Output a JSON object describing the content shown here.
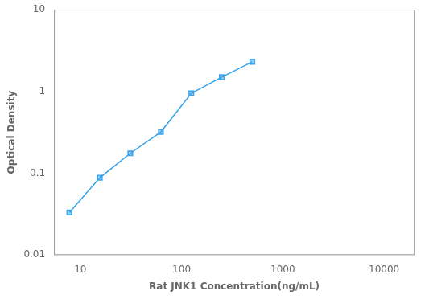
{
  "chart_data": {
    "type": "line",
    "x": [
      7.8,
      15.6,
      31.2,
      62.5,
      125,
      250,
      500
    ],
    "values": [
      0.033,
      0.088,
      0.175,
      0.32,
      0.95,
      1.5,
      2.3
    ],
    "xlabel": "Rat JNK1 Concentration(ng/mL)",
    "ylabel": "Optical Density",
    "xlim": [
      5.5,
      20000
    ],
    "ylim": [
      0.01,
      10
    ],
    "xticks": [
      10,
      100,
      1000,
      10000
    ],
    "yticks": [
      0.01,
      0.1,
      1,
      10
    ],
    "log": true,
    "grid": false,
    "marker": "square"
  }
}
